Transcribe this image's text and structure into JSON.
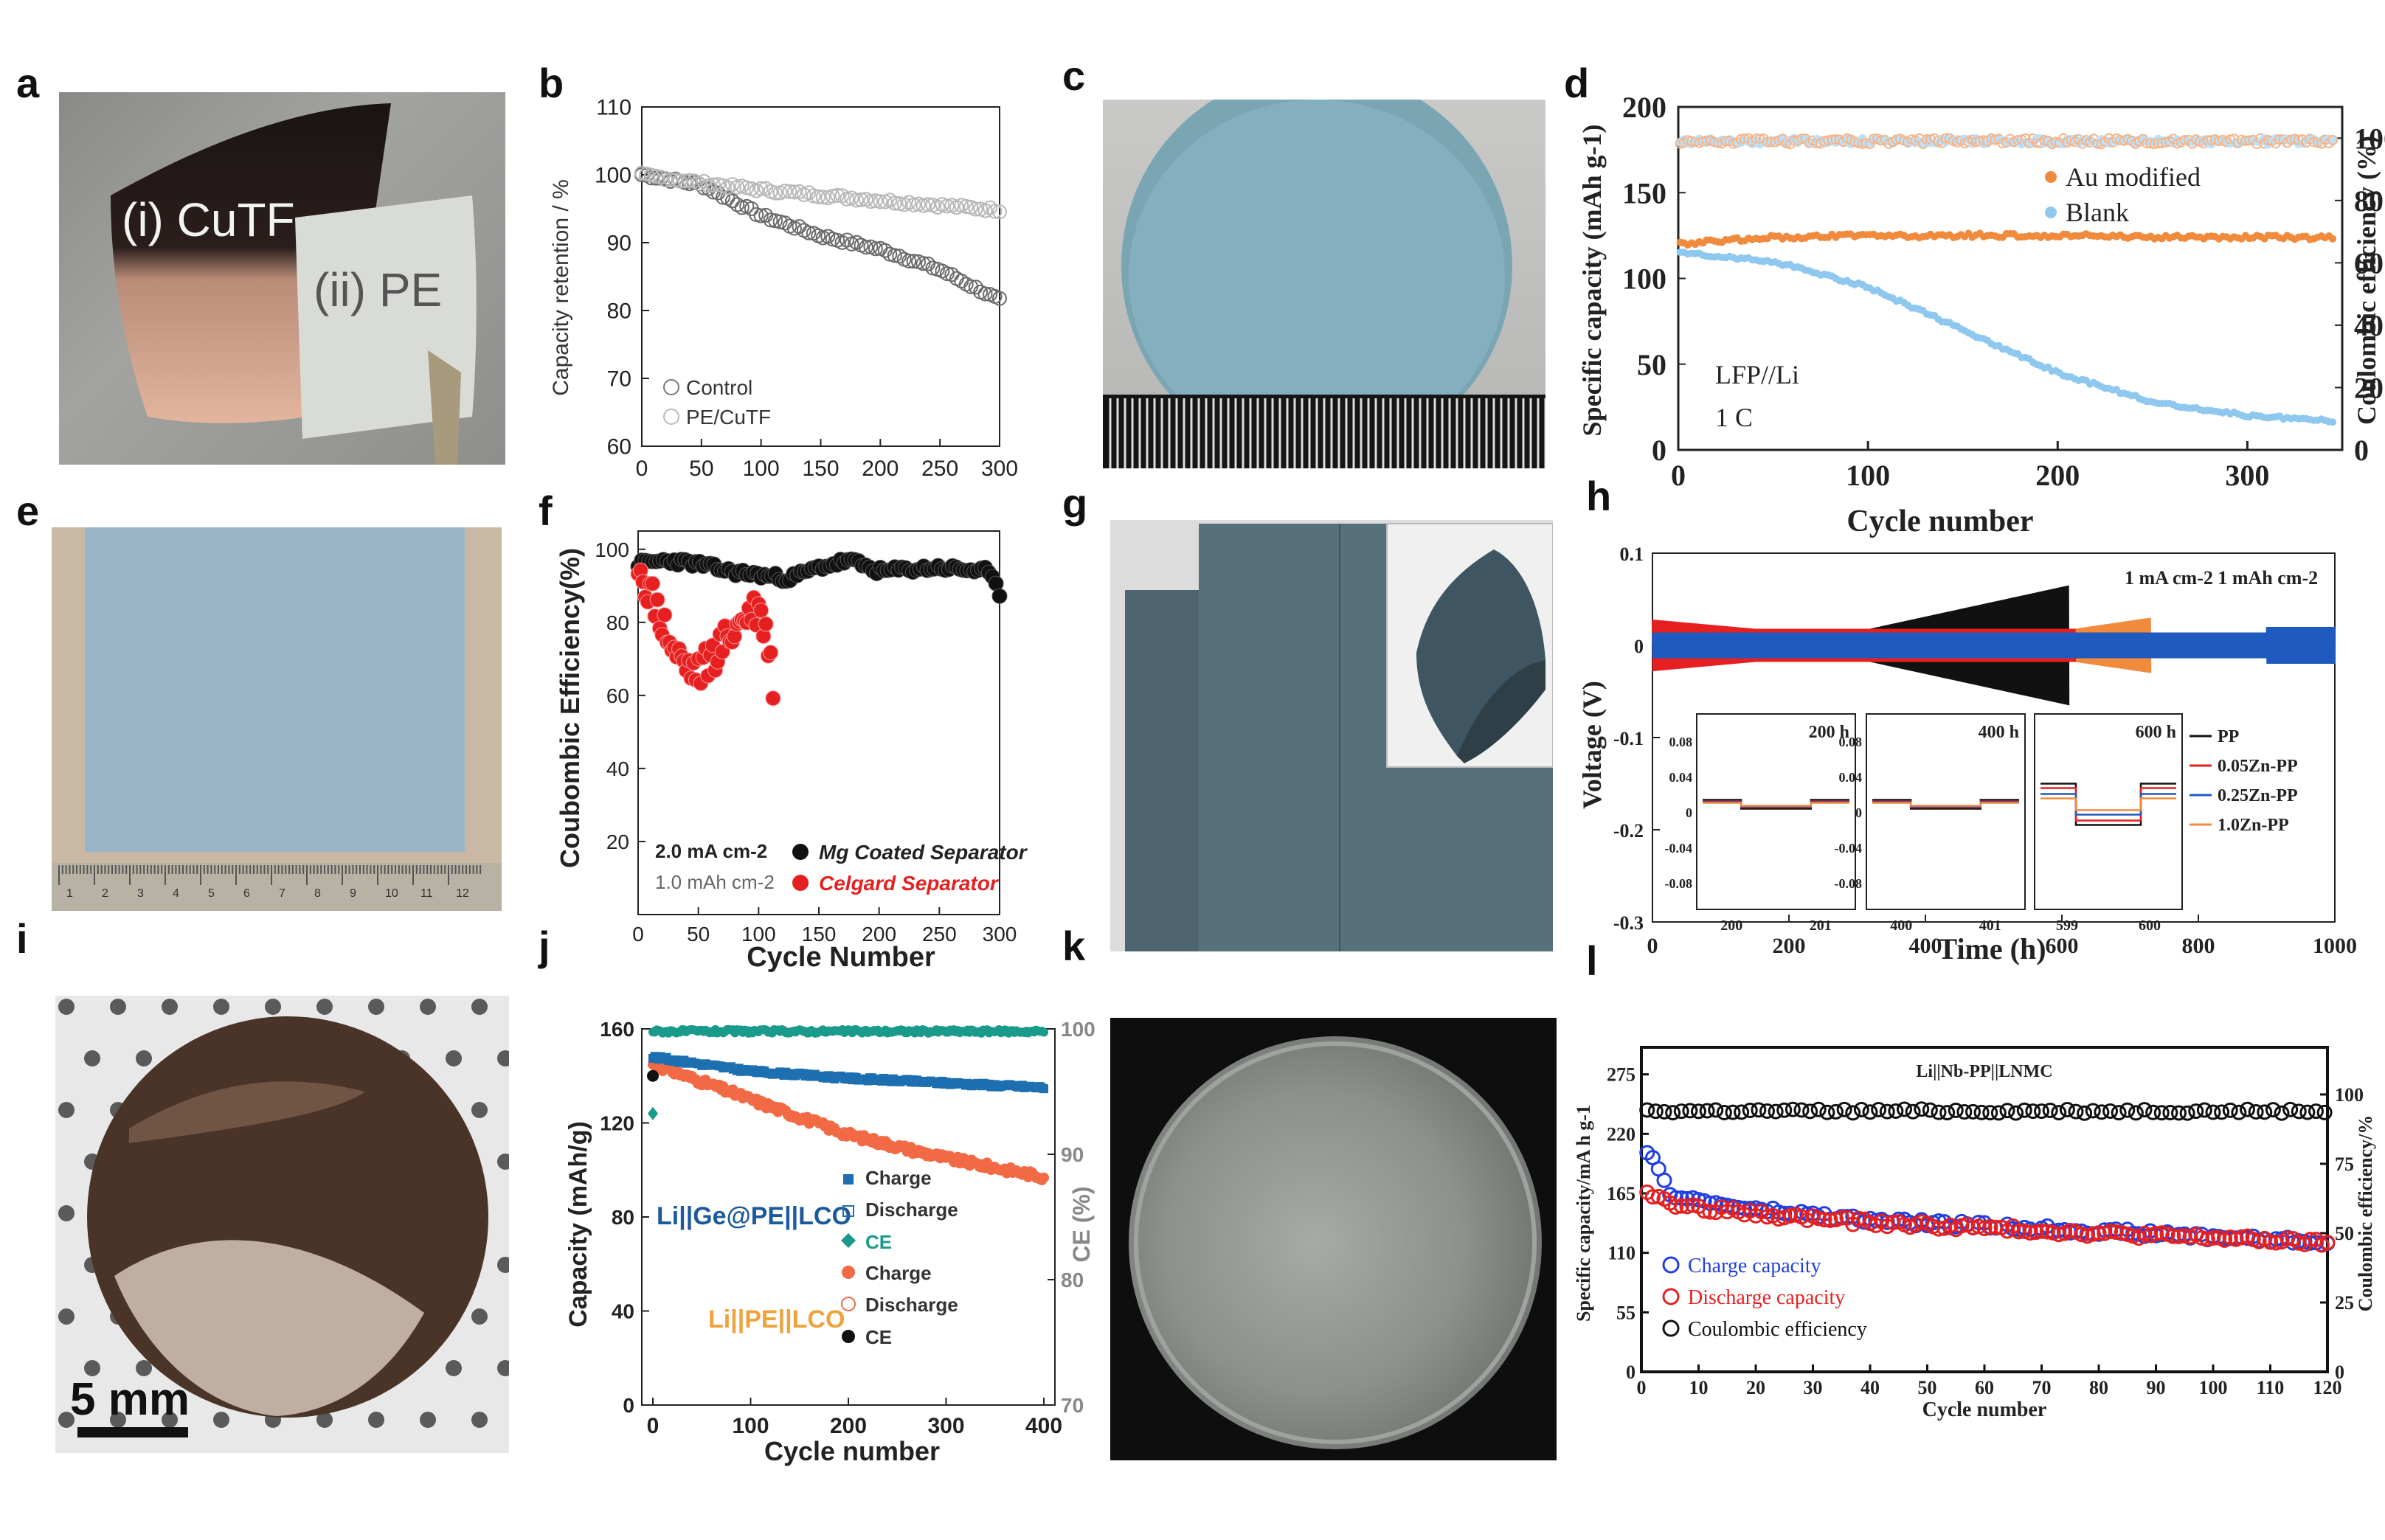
{
  "panel_labels": [
    "a",
    "b",
    "c",
    "d",
    "e",
    "f",
    "g",
    "h",
    "i",
    "j",
    "k",
    "l"
  ],
  "photo_a": {
    "label_i": "(i) CuTF",
    "label_ii": "(ii) PE"
  },
  "photo_e": {
    "ruler_ticks": [
      "1",
      "2",
      "3",
      "4",
      "5",
      "6",
      "7",
      "8",
      "9",
      "10",
      "11",
      "12"
    ]
  },
  "photo_i": {
    "scale_bar": "5 mm"
  },
  "colors": {
    "black": "#111111",
    "red": "#e62020",
    "gray": "#888888",
    "orange": "#f08a3c",
    "lightblue": "#8ec8ee",
    "blue": "#1f5bbf",
    "teal": "#1a9a8a",
    "salmon": "#f26a45",
    "navy": "#1d6fb0"
  },
  "chart_data": [
    {
      "id": "b",
      "type": "scatter",
      "ylabel": "Capacity retention / %",
      "xlim": [
        0,
        300
      ],
      "ylim": [
        60,
        110
      ],
      "xticks": [
        "0",
        "50",
        "100",
        "150",
        "200",
        "250",
        "300"
      ],
      "yticks": [
        "60",
        "70",
        "80",
        "90",
        "100",
        "110"
      ],
      "legend": [
        "Control",
        "PE/CuTF"
      ],
      "series": [
        {
          "name": "Control",
          "x": [
            0,
            50,
            100,
            150,
            200,
            250,
            300
          ],
          "y": [
            100,
            98.5,
            94,
            91,
            89,
            86,
            81.5
          ]
        },
        {
          "name": "PE/CuTF",
          "x": [
            0,
            50,
            100,
            150,
            200,
            250,
            300
          ],
          "y": [
            100,
            98.8,
            97.8,
            97,
            96.2,
            95.5,
            94.8
          ]
        }
      ]
    },
    {
      "id": "d",
      "type": "scatter",
      "ylabel": "Specific capacity (mAh g-1)",
      "ylabel_right": "Coulombic efficiency (%)",
      "xlabel": "Cycle number",
      "xlim": [
        0,
        350
      ],
      "ylim": [
        0,
        200
      ],
      "ylim_right": [
        0,
        110
      ],
      "xticks": [
        "0",
        "100",
        "200",
        "300"
      ],
      "yticks": [
        "0",
        "50",
        "100",
        "150",
        "200"
      ],
      "yticks_right": [
        "0",
        "20",
        "40",
        "60",
        "80",
        "100"
      ],
      "legend": [
        "Au modified",
        "Blank"
      ],
      "annotations": [
        "LFP//Li",
        "1 C"
      ],
      "series": [
        {
          "name": "Au modified",
          "x": [
            0,
            50,
            100,
            150,
            200,
            250,
            300,
            345
          ],
          "y": [
            120,
            124,
            125,
            125,
            125,
            124,
            124,
            124
          ]
        },
        {
          "name": "Blank",
          "x": [
            0,
            50,
            100,
            150,
            200,
            250,
            300,
            345
          ],
          "y": [
            115,
            110,
            95,
            70,
            45,
            28,
            20,
            17
          ]
        },
        {
          "name": "Au modified CE",
          "x": [
            0,
            100,
            200,
            345
          ],
          "y": [
            99,
            99,
            99,
            99
          ]
        },
        {
          "name": "Blank CE",
          "x": [
            0,
            100,
            200,
            345
          ],
          "y": [
            99,
            99,
            99,
            99
          ]
        }
      ]
    },
    {
      "id": "f",
      "type": "scatter",
      "ylabel": "Coubombic Efficiency(%)",
      "xlabel": "Cycle Number",
      "xlim": [
        0,
        300
      ],
      "ylim": [
        0,
        105
      ],
      "xticks": [
        "0",
        "50",
        "100",
        "150",
        "200",
        "250",
        "300"
      ],
      "yticks": [
        "20",
        "40",
        "60",
        "80",
        "100"
      ],
      "legend": [
        "Mg Coated Separator",
        "Celgard Separator"
      ],
      "annotations": [
        "2.0 mA cm-2",
        "1.0 mAh cm-2"
      ],
      "series": [
        {
          "name": "Mg Coated Separator",
          "x": [
            0,
            25,
            50,
            75,
            100,
            125,
            150,
            175,
            200,
            250,
            290,
            300
          ],
          "y": [
            96,
            97,
            96,
            94,
            93,
            92,
            95,
            97,
            94,
            95,
            94,
            88
          ]
        },
        {
          "name": "Celgard Separator",
          "x": [
            0,
            10,
            20,
            30,
            40,
            50,
            60,
            70,
            80,
            90,
            100,
            110,
            112
          ],
          "y": [
            96,
            88,
            80,
            72,
            68,
            66,
            70,
            74,
            78,
            82,
            84,
            72,
            62
          ]
        }
      ]
    },
    {
      "id": "h",
      "type": "line",
      "ylabel": "Voltage (V)",
      "xlabel": "Time (h)",
      "xlim": [
        0,
        1000
      ],
      "ylim": [
        -0.3,
        0.1
      ],
      "xticks": [
        "0",
        "200",
        "400",
        "600",
        "800",
        "1000"
      ],
      "yticks": [
        "0.1",
        "0",
        "-0.1",
        "-0.2",
        "-0.3"
      ],
      "annotation": "1 mA cm-2   1 mAh cm-2",
      "legend": [
        "PP",
        "0.05Zn-PP",
        "0.25Zn-PP",
        "1.0Zn-PP"
      ],
      "series": [
        {
          "name": "PP",
          "end_time": 610,
          "max_amplitude": 0.065
        },
        {
          "name": "0.05Zn-PP",
          "end_time": 620,
          "max_amplitude": 0.025
        },
        {
          "name": "0.25Zn-PP",
          "end_time": 1000,
          "max_amplitude": 0.02
        },
        {
          "name": "1.0Zn-PP",
          "end_time": 730,
          "max_amplitude": 0.03
        }
      ],
      "insets": [
        {
          "title": "200 h",
          "xticks": [
            "200",
            "201"
          ],
          "yticks": [
            "0.08",
            "0.04",
            "0",
            "-0.04",
            "-0.08"
          ]
        },
        {
          "title": "400 h",
          "xticks": [
            "400",
            "401"
          ],
          "yticks": [
            "0.08",
            "0.04",
            "0",
            "-0.04",
            "-0.08"
          ]
        },
        {
          "title": "600 h",
          "xticks": [
            "599",
            "600"
          ],
          "yticks": []
        }
      ]
    },
    {
      "id": "j",
      "type": "scatter",
      "ylabel": "Capacity (mAh/g)",
      "ylabel_right": "CE (%)",
      "xlabel": "Cycle number",
      "xlim": [
        0,
        400
      ],
      "ylim": [
        0,
        160
      ],
      "ylim_right": [
        70,
        100
      ],
      "xticks": [
        "0",
        "100",
        "200",
        "300",
        "400"
      ],
      "yticks": [
        "0",
        "40",
        "80",
        "120",
        "160"
      ],
      "yticks_right": [
        "70",
        "80",
        "90",
        "100"
      ],
      "group_labels": [
        "Li||Ge@PE||LCO",
        "Li||PE||LCO"
      ],
      "legend": [
        "Charge",
        "Discharge",
        "CE",
        "Charge",
        "Discharge",
        "CE"
      ],
      "series": [
        {
          "name": "Ge@PE Charge",
          "x": [
            0,
            100,
            200,
            300,
            400
          ],
          "y": [
            148,
            142,
            139,
            137,
            135
          ]
        },
        {
          "name": "PE Charge",
          "x": [
            0,
            100,
            200,
            300,
            400
          ],
          "y": [
            145,
            130,
            115,
            105,
            97
          ]
        },
        {
          "name": "Ge@PE CE",
          "x": [
            0,
            100,
            200,
            300,
            400
          ],
          "y": [
            99.8,
            99.8,
            99.8,
            99.8,
            99.8
          ]
        }
      ]
    },
    {
      "id": "l",
      "type": "scatter",
      "title": "Li||Nb-PP||LNMC",
      "ylabel": "Specific capacity/mA h g-1",
      "ylabel_right": "Coulombic efficiency/%",
      "xlabel": "Cycle number",
      "xlim": [
        0,
        120
      ],
      "ylim": [
        0,
        300
      ],
      "ylim_right": [
        0,
        117
      ],
      "xticks": [
        "0",
        "10",
        "20",
        "30",
        "40",
        "50",
        "60",
        "70",
        "80",
        "90",
        "100",
        "110",
        "120"
      ],
      "yticks": [
        "0",
        "55",
        "110",
        "165",
        "220",
        "275"
      ],
      "yticks_right": [
        "0",
        "25",
        "50",
        "75",
        "100"
      ],
      "legend": [
        "Charge capacity",
        "Discharge capacity",
        "Coulombic efficiency"
      ],
      "series": [
        {
          "name": "Charge capacity",
          "x": [
            1,
            5,
            10,
            20,
            40,
            60,
            80,
            100,
            120
          ],
          "y": [
            205,
            165,
            158,
            150,
            140,
            135,
            130,
            125,
            120
          ]
        },
        {
          "name": "Discharge capacity",
          "x": [
            1,
            5,
            10,
            20,
            40,
            60,
            80,
            100,
            120
          ],
          "y": [
            165,
            155,
            152,
            146,
            138,
            133,
            128,
            124,
            119
          ]
        },
        {
          "name": "Coulombic efficiency",
          "x": [
            1,
            20,
            40,
            60,
            80,
            100,
            120
          ],
          "y": [
            94,
            94,
            94,
            94,
            94,
            94,
            94
          ]
        }
      ]
    }
  ]
}
